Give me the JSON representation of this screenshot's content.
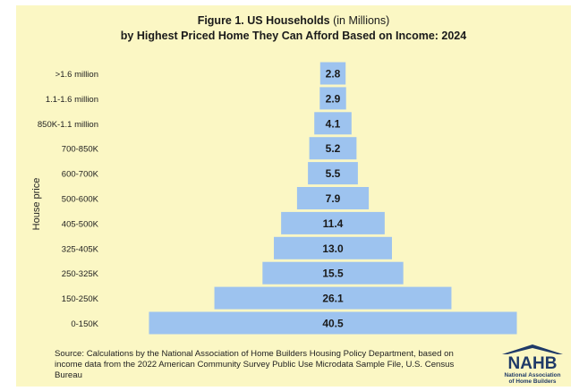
{
  "title_line1_bold": "Figure 1. US Households",
  "title_line1_normal": " (in Millions)",
  "title_line2": "by Highest Priced Home They Can Afford Based on Income: 2024",
  "source": "Source: Calculations by the National Association of Home Builders Housing Policy Department, based on income data from the 2022 American Community Survey Public Use Microdata Sample File, U.S. Census Bureau",
  "logo": {
    "letters": "NAHB",
    "tagline1": "National Association",
    "tagline2": "of Home Builders",
    "roof_color": "#1f3a68",
    "accent_color": "#c8102e"
  },
  "chart_data": {
    "type": "bar",
    "orientation": "horizontal-centered",
    "title": "Figure 1. US Households (in Millions) by Highest Priced Home They Can Afford Based on Income: 2024",
    "ylabel": "House price",
    "xlabel": "",
    "categories": [
      ">1.6 million",
      "1.1-1.6 million",
      "850K-1.1 million",
      "700-850K",
      "600-700K",
      "500-600K",
      "405-500K",
      "325-405K",
      "250-325K",
      "150-250K",
      "0-150K"
    ],
    "values": [
      2.8,
      2.9,
      4.1,
      5.2,
      5.5,
      7.9,
      11.4,
      13.0,
      15.5,
      26.1,
      40.5
    ],
    "value_labels": [
      "2.8",
      "2.9",
      "4.1",
      "5.2",
      "5.5",
      "7.9",
      "11.4",
      "13.0",
      "15.5",
      "26.1",
      "40.5"
    ],
    "bar_color": "#9dc3ef",
    "background_color": "#fbf7c4"
  }
}
